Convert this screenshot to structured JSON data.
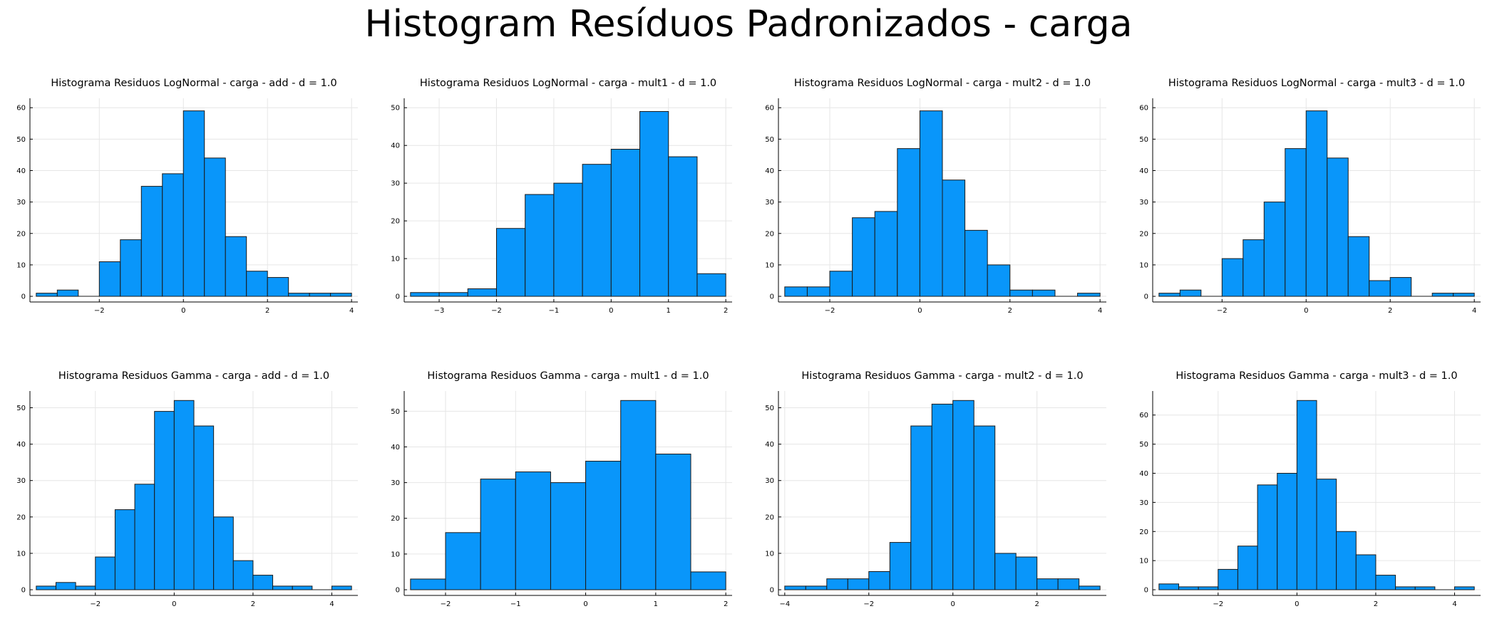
{
  "suptitle": "Histogram Resíduos Padronizados - carga",
  "style": {
    "bar_fill": "#0996fa",
    "bar_stroke": "#1a1a1a",
    "grid_color": "#e6e6e6"
  },
  "chart_data": [
    {
      "type": "bar",
      "title": "Histograma Residuos LogNormal - carga - add - d = 1.0",
      "bin_start": -3.5,
      "bin_width": 0.5,
      "values": [
        1,
        2,
        0,
        11,
        18,
        35,
        39,
        59,
        44,
        19,
        8,
        6,
        1,
        1,
        1
      ],
      "xlim": [
        -3.5,
        4
      ],
      "ylim": [
        0,
        60
      ],
      "xticks": [
        -2,
        0,
        2,
        4
      ],
      "yticks": [
        0,
        10,
        20,
        30,
        40,
        50,
        60
      ]
    },
    {
      "type": "bar",
      "title": "Histograma Residuos LogNormal - carga - mult1 - d = 1.0",
      "bin_start": -3.5,
      "bin_width": 0.5,
      "values": [
        1,
        1,
        2,
        18,
        27,
        30,
        35,
        39,
        49,
        37,
        6
      ],
      "xlim": [
        -3.5,
        2
      ],
      "ylim": [
        0,
        50
      ],
      "xticks": [
        -3,
        -2,
        -1,
        0,
        1,
        2
      ],
      "yticks": [
        0,
        10,
        20,
        30,
        40,
        50
      ]
    },
    {
      "type": "bar",
      "title": "Histograma Residuos LogNormal - carga - mult2 - d = 1.0",
      "bin_start": -3,
      "bin_width": 0.5,
      "values": [
        3,
        3,
        8,
        25,
        27,
        47,
        59,
        37,
        21,
        10,
        2,
        2,
        0,
        1
      ],
      "xlim": [
        -3,
        4
      ],
      "ylim": [
        0,
        60
      ],
      "xticks": [
        -2,
        0,
        2,
        4
      ],
      "yticks": [
        0,
        10,
        20,
        30,
        40,
        50,
        60
      ]
    },
    {
      "type": "bar",
      "title": "Histograma Residuos LogNormal - carga - mult3 - d = 1.0",
      "bin_start": -3.5,
      "bin_width": 0.5,
      "values": [
        1,
        2,
        0,
        12,
        18,
        30,
        47,
        59,
        44,
        19,
        5,
        6,
        0,
        1,
        1
      ],
      "xlim": [
        -3.5,
        4
      ],
      "ylim": [
        0,
        60
      ],
      "xticks": [
        -2,
        0,
        2,
        4
      ],
      "yticks": [
        0,
        10,
        20,
        30,
        40,
        50,
        60
      ]
    },
    {
      "type": "bar",
      "title": "Histograma Residuos Gamma - carga - add - d = 1.0",
      "bin_start": -3.5,
      "bin_width": 0.5,
      "values": [
        1,
        2,
        1,
        9,
        22,
        29,
        49,
        52,
        45,
        20,
        8,
        4,
        1,
        1,
        0,
        1
      ],
      "xlim": [
        -3.5,
        4.5
      ],
      "ylim": [
        0,
        52
      ],
      "xticks": [
        -2,
        0,
        2,
        4
      ],
      "yticks": [
        0,
        10,
        20,
        30,
        40,
        50
      ]
    },
    {
      "type": "bar",
      "title": "Histograma Residuos Gamma - carga - mult1 - d = 1.0",
      "bin_start": -2.5,
      "bin_width": 0.5,
      "values": [
        3,
        16,
        31,
        33,
        30,
        36,
        53,
        38,
        5
      ],
      "xlim": [
        -2.5,
        2
      ],
      "ylim": [
        0,
        53
      ],
      "xticks": [
        -2,
        -1,
        0,
        1,
        2
      ],
      "yticks": [
        0,
        10,
        20,
        30,
        40,
        50
      ]
    },
    {
      "type": "bar",
      "title": "Histograma Residuos Gamma - carga - mult2 - d = 1.0",
      "bin_start": -4,
      "bin_width": 0.5,
      "values": [
        1,
        1,
        3,
        3,
        5,
        13,
        45,
        51,
        52,
        45,
        10,
        9,
        3,
        3,
        1
      ],
      "xlim": [
        -4,
        3.5
      ],
      "ylim": [
        0,
        52
      ],
      "xticks": [
        -4,
        -2,
        0,
        2
      ],
      "yticks": [
        0,
        10,
        20,
        30,
        40,
        50
      ]
    },
    {
      "type": "bar",
      "title": "Histograma Residuos Gamma - carga - mult3 - d = 1.0",
      "bin_start": -3.5,
      "bin_width": 0.5,
      "values": [
        2,
        1,
        1,
        7,
        15,
        36,
        40,
        65,
        38,
        20,
        12,
        5,
        1,
        1,
        0,
        1
      ],
      "xlim": [
        -3.5,
        4.5
      ],
      "ylim": [
        0,
        65
      ],
      "xticks": [
        -2,
        0,
        2,
        4
      ],
      "yticks": [
        0,
        10,
        20,
        30,
        40,
        50,
        60
      ]
    }
  ]
}
